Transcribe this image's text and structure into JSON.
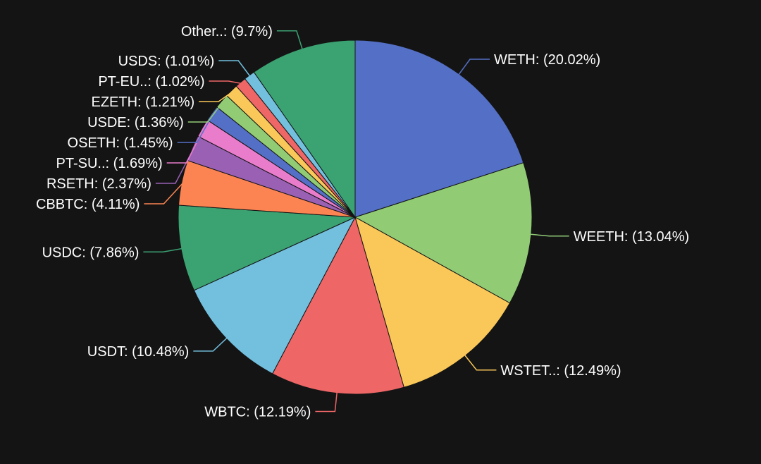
{
  "background_color": "#141415",
  "chart_data": {
    "type": "pie",
    "start_angle_deg": 0,
    "direction": "clockwise",
    "label_format": "{label}: ({value}%)",
    "slices": [
      {
        "label": "WETH",
        "value": 20.02,
        "color": "#5470c6"
      },
      {
        "label": "WEETH",
        "value": 13.04,
        "color": "#91cc75"
      },
      {
        "label": "WSTET..",
        "value": 12.49,
        "color": "#fac858"
      },
      {
        "label": "WBTC",
        "value": 12.19,
        "color": "#ee6666"
      },
      {
        "label": "USDT",
        "value": 10.48,
        "color": "#73c0de"
      },
      {
        "label": "USDC",
        "value": 7.86,
        "color": "#3ba272"
      },
      {
        "label": "CBBTC",
        "value": 4.11,
        "color": "#fc8452"
      },
      {
        "label": "RSETH",
        "value": 2.37,
        "color": "#9a60b4"
      },
      {
        "label": "PT-SU..",
        "value": 1.69,
        "color": "#ea7ccc"
      },
      {
        "label": "OSETH",
        "value": 1.45,
        "color": "#5470c6"
      },
      {
        "label": "USDE",
        "value": 1.36,
        "color": "#91cc75"
      },
      {
        "label": "EZETH",
        "value": 1.21,
        "color": "#fac858"
      },
      {
        "label": "PT-EU..",
        "value": 1.02,
        "color": "#ee6666"
      },
      {
        "label": "USDS",
        "value": 1.01,
        "color": "#73c0de"
      },
      {
        "label": "Other..",
        "value": 9.7,
        "color": "#3ba272"
      }
    ]
  }
}
